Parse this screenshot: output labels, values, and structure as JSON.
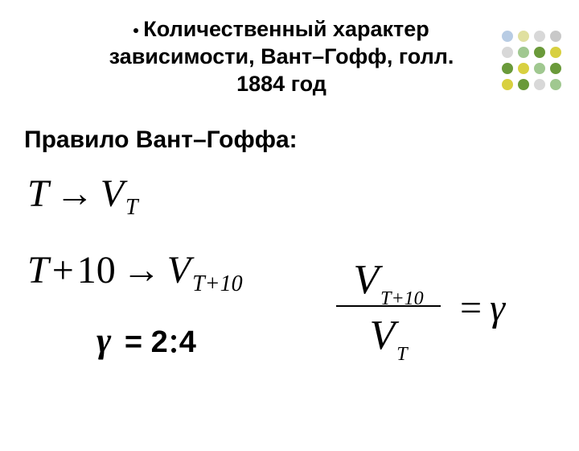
{
  "decoration": {
    "dot_colors": [
      "#b8cce4",
      "#e0e0a0",
      "#d8d8d8",
      "#c8c8c8",
      "#d8d8d8",
      "#a0c890",
      "#6a9a3a",
      "#d8d040",
      "#6a9a3a",
      "#d8d040",
      "#a0c890",
      "#6a9a3a",
      "#d8d040",
      "#6a9a3a",
      "#d8d8d8",
      "#a0c890"
    ]
  },
  "title": {
    "line1": "Количественный характер",
    "line2": "зависимости, Вант–Гофф, голл.",
    "line3": "1884 год"
  },
  "subtitle": "Правило Вант–Гоффа:",
  "formulas": {
    "row1": {
      "T": "T",
      "arrow": "→",
      "V": "V",
      "sub": "T"
    },
    "row2": {
      "T": "T",
      "plus": "+",
      "ten": "10",
      "arrow": "→",
      "V": "V",
      "sub": "T+10"
    },
    "fraction": {
      "top_V": "V",
      "top_sub": "T+10",
      "bot_V": "V",
      "bot_sub": "T",
      "eq": "=",
      "gamma": "γ"
    }
  },
  "gamma_line": {
    "gamma": "γ",
    "eq": "=",
    "two": "2",
    "four": "4"
  },
  "style": {
    "background": "#ffffff",
    "text_color": "#000000",
    "title_fontsize": 27,
    "subtitle_fontsize": 30,
    "formula_fontsize": 48,
    "gamma_fontsize": 44
  }
}
